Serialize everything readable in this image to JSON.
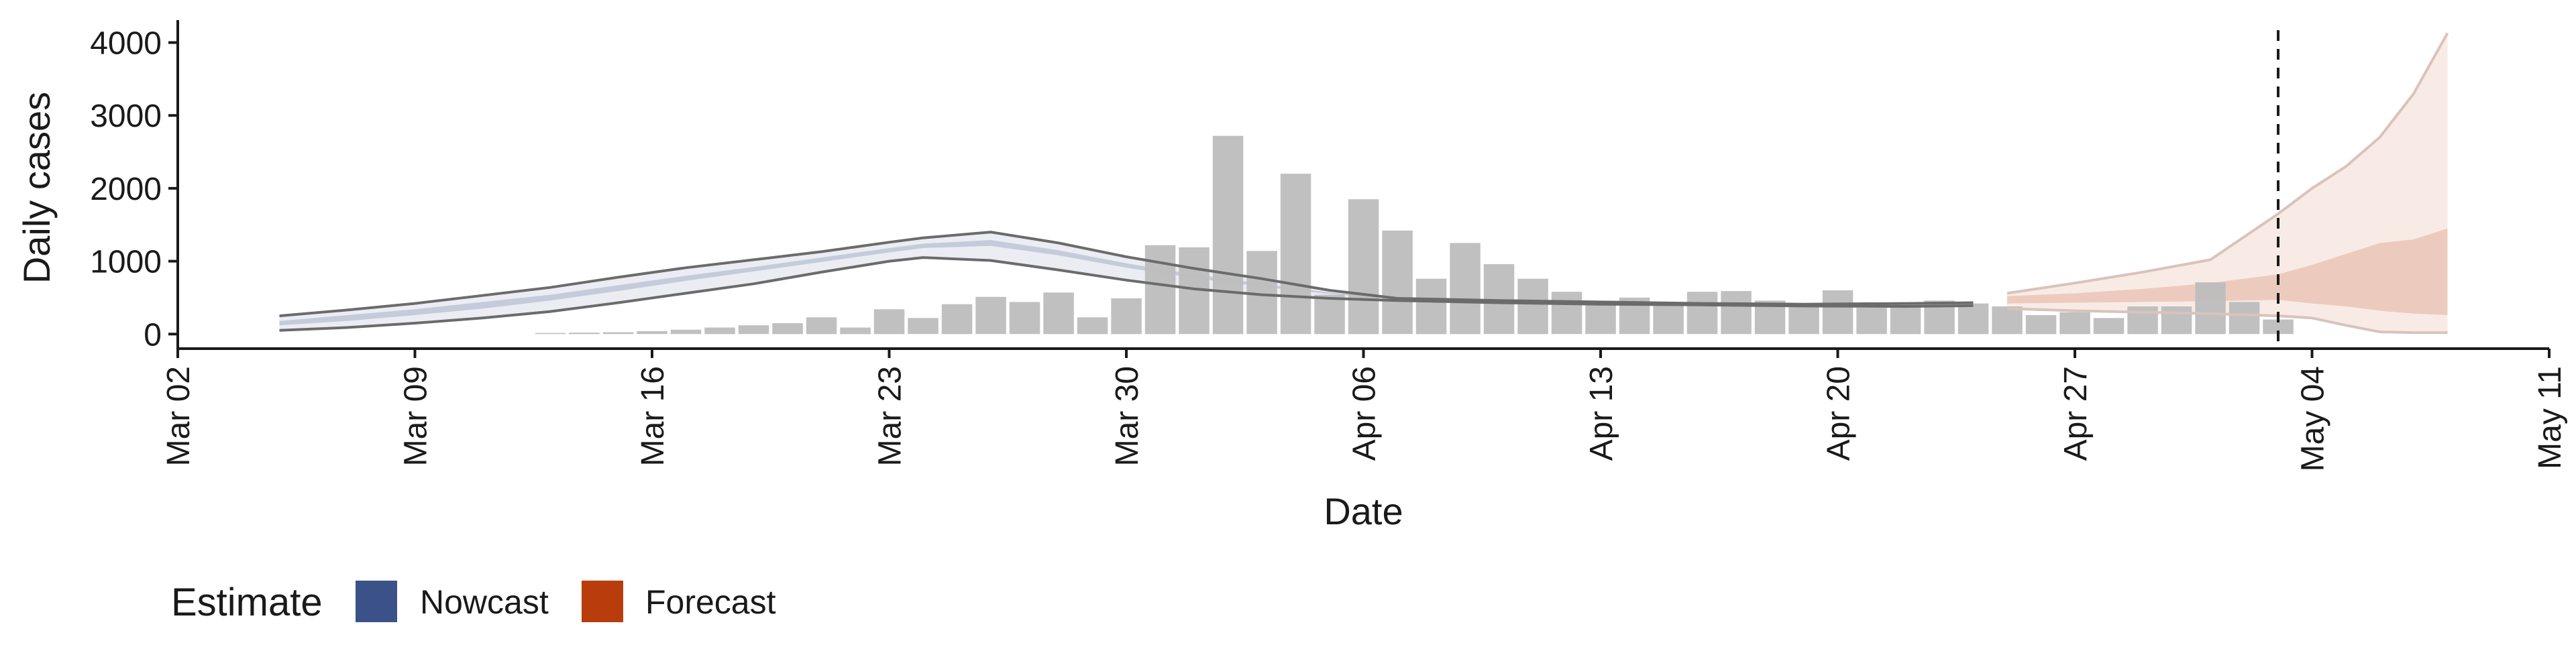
{
  "chart_data": {
    "type": "bar",
    "xlabel": "Date",
    "ylabel": "Daily cases",
    "x_range": [
      "2020-03-02",
      "2020-05-11"
    ],
    "ylim": [
      -200,
      4400
    ],
    "x_ticks": [
      "Mar 02",
      "Mar 09",
      "Mar 16",
      "Mar 23",
      "Mar 30",
      "Apr 06",
      "Apr 13",
      "Apr 20",
      "Apr 27",
      "May 04",
      "May 11"
    ],
    "y_ticks": [
      0,
      1000,
      2000,
      3000,
      4000
    ],
    "grid": false,
    "vline_date": "2020-05-03",
    "bars": {
      "name": "Daily cases",
      "color": "#bdbdbd",
      "dates": [
        "2020-03-13",
        "2020-03-14",
        "2020-03-15",
        "2020-03-16",
        "2020-03-17",
        "2020-03-18",
        "2020-03-19",
        "2020-03-20",
        "2020-03-21",
        "2020-03-22",
        "2020-03-23",
        "2020-03-24",
        "2020-03-25",
        "2020-03-26",
        "2020-03-27",
        "2020-03-28",
        "2020-03-29",
        "2020-03-30",
        "2020-03-31",
        "2020-04-01",
        "2020-04-02",
        "2020-04-03",
        "2020-04-04",
        "2020-04-05",
        "2020-04-06",
        "2020-04-07",
        "2020-04-08",
        "2020-04-09",
        "2020-04-10",
        "2020-04-11",
        "2020-04-12",
        "2020-04-13",
        "2020-04-14",
        "2020-04-15",
        "2020-04-16",
        "2020-04-17",
        "2020-04-18",
        "2020-04-19",
        "2020-04-20",
        "2020-04-21",
        "2020-04-22",
        "2020-04-23",
        "2020-04-24",
        "2020-04-25",
        "2020-04-26",
        "2020-04-27",
        "2020-04-28",
        "2020-04-29",
        "2020-04-30",
        "2020-05-01",
        "2020-05-02",
        "2020-05-03"
      ],
      "values": [
        15,
        20,
        25,
        40,
        60,
        90,
        120,
        150,
        230,
        90,
        340,
        220,
        410,
        510,
        440,
        570,
        230,
        490,
        1220,
        1190,
        2720,
        1140,
        2200,
        540,
        1850,
        1420,
        760,
        1250,
        960,
        760,
        580,
        440,
        500,
        430,
        580,
        590,
        460,
        370,
        600,
        360,
        420,
        460,
        420,
        380,
        260,
        300,
        220,
        380,
        380,
        710,
        440,
        200
      ]
    },
    "series": [
      {
        "name": "Nowcast",
        "color": "#3b5288",
        "dates": [
          "2020-03-05",
          "2020-03-07",
          "2020-03-09",
          "2020-03-11",
          "2020-03-13",
          "2020-03-15",
          "2020-03-17",
          "2020-03-19",
          "2020-03-21",
          "2020-03-23",
          "2020-03-24",
          "2020-03-26",
          "2020-03-28",
          "2020-03-30",
          "2020-04-01",
          "2020-04-03",
          "2020-04-05",
          "2020-04-07",
          "2020-04-10",
          "2020-04-13",
          "2020-04-16",
          "2020-04-19",
          "2020-04-22",
          "2020-04-24"
        ],
        "outer_lower": [
          50,
          90,
          150,
          220,
          310,
          430,
          560,
          690,
          850,
          1000,
          1050,
          1010,
          880,
          740,
          620,
          540,
          490,
          460,
          430,
          410,
          400,
          385,
          380,
          390
        ],
        "outer_upper": [
          250,
          330,
          420,
          530,
          640,
          780,
          910,
          1020,
          1130,
          1260,
          1320,
          1400,
          1250,
          1060,
          900,
          760,
          600,
          490,
          460,
          440,
          420,
          410,
          420,
          430
        ],
        "inner_lower": [
          120,
          180,
          260,
          350,
          460,
          590,
          730,
          860,
          990,
          1120,
          1180,
          1210,
          1080,
          910,
          770,
          650,
          550,
          480,
          445,
          425,
          410,
          395,
          395,
          400
        ],
        "inner_upper": [
          180,
          260,
          340,
          440,
          540,
          670,
          800,
          920,
          1050,
          1180,
          1240,
          1290,
          1150,
          970,
          820,
          690,
          570,
          485,
          450,
          430,
          415,
          400,
          405,
          415
        ]
      },
      {
        "name": "Forecast",
        "color": "#b83c0c",
        "dates": [
          "2020-04-25",
          "2020-04-27",
          "2020-04-29",
          "2020-05-01",
          "2020-05-03",
          "2020-05-04",
          "2020-05-05",
          "2020-05-06",
          "2020-05-07",
          "2020-05-08"
        ],
        "outer_lower": [
          350,
          320,
          300,
          280,
          250,
          220,
          120,
          30,
          20,
          20
        ],
        "outer_upper": [
          560,
          700,
          850,
          1020,
          1650,
          2000,
          2300,
          2700,
          3300,
          4130
        ],
        "inner_lower": [
          420,
          430,
          440,
          450,
          470,
          420,
          380,
          320,
          280,
          260
        ],
        "inner_upper": [
          520,
          560,
          620,
          700,
          820,
          950,
          1100,
          1250,
          1300,
          1450
        ]
      }
    ],
    "legend": {
      "title": "Estimate",
      "position": "bottom-left",
      "items": [
        {
          "label": "Nowcast",
          "color": "#3b5288"
        },
        {
          "label": "Forecast",
          "color": "#b83c0c"
        }
      ]
    }
  }
}
